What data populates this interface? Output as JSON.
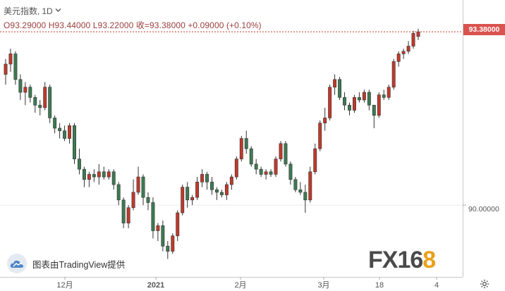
{
  "header": {
    "symbol": "美元指数,",
    "interval": "1D",
    "dropdown_icon": "chevron-down-icon",
    "ohlc": "O93.29000   H93.44000   L93.22000   收=93.38000   +0.09000  (+0.10%)"
  },
  "last_price_label": "93.38000",
  "price_axis_label": "90.00000",
  "watermark": {
    "text": "图表由TradingView提供",
    "icon": "tradingview-cloud-icon"
  },
  "brand": {
    "text_main": "FX16",
    "text_accent": "8"
  },
  "settings_icon": "gear-icon",
  "colors": {
    "up": "#c0392b",
    "down": "#3d7a52",
    "last_line": "#c0392b",
    "accent_orange": "#e9a11a"
  },
  "chart_data": {
    "type": "candlestick",
    "title": "美元指数",
    "interval": "1D",
    "x_ticks": [
      "12月",
      "2021",
      "2月",
      "3月",
      "18",
      "4"
    ],
    "y_ticks": [
      90.0
    ],
    "last_price": 93.38,
    "ylim": [
      88.6,
      94.0
    ],
    "candles": [
      [
        92.55,
        92.85,
        92.35,
        92.75
      ],
      [
        92.75,
        93.05,
        92.6,
        92.95
      ],
      [
        92.95,
        93.0,
        92.35,
        92.45
      ],
      [
        92.45,
        92.55,
        92.05,
        92.2
      ],
      [
        92.2,
        92.4,
        91.95,
        92.3
      ],
      [
        92.3,
        92.35,
        92.0,
        92.1
      ],
      [
        92.1,
        92.15,
        91.8,
        91.95
      ],
      [
        91.95,
        92.05,
        91.75,
        91.9
      ],
      [
        91.9,
        92.4,
        91.85,
        92.3
      ],
      [
        92.3,
        92.35,
        91.6,
        91.7
      ],
      [
        91.7,
        91.75,
        91.4,
        91.5
      ],
      [
        91.5,
        91.6,
        91.3,
        91.45
      ],
      [
        91.45,
        91.55,
        91.25,
        91.3
      ],
      [
        91.3,
        91.6,
        91.2,
        91.55
      ],
      [
        91.55,
        91.6,
        90.8,
        90.9
      ],
      [
        90.9,
        91.1,
        90.6,
        90.7
      ],
      [
        90.7,
        90.75,
        90.35,
        90.5
      ],
      [
        90.5,
        90.65,
        90.35,
        90.6
      ],
      [
        90.6,
        90.7,
        90.45,
        90.55
      ],
      [
        90.55,
        90.8,
        90.4,
        90.65
      ],
      [
        90.65,
        90.75,
        90.5,
        90.55
      ],
      [
        90.55,
        90.7,
        90.5,
        90.65
      ],
      [
        90.65,
        90.7,
        90.3,
        90.4
      ],
      [
        90.4,
        90.45,
        90.0,
        90.1
      ],
      [
        90.1,
        90.15,
        89.55,
        89.65
      ],
      [
        89.65,
        90.0,
        89.55,
        89.95
      ],
      [
        89.95,
        90.5,
        89.9,
        90.25
      ],
      [
        90.25,
        90.75,
        90.2,
        90.55
      ],
      [
        90.55,
        90.6,
        90.0,
        90.15
      ],
      [
        90.15,
        90.25,
        89.9,
        90.05
      ],
      [
        90.05,
        90.15,
        89.35,
        89.5
      ],
      [
        89.5,
        89.65,
        89.3,
        89.6
      ],
      [
        89.6,
        89.7,
        89.1,
        89.2
      ],
      [
        89.2,
        89.3,
        88.95,
        89.1
      ],
      [
        89.1,
        89.45,
        89.05,
        89.4
      ],
      [
        89.4,
        89.9,
        89.3,
        89.85
      ],
      [
        89.85,
        90.4,
        89.8,
        90.35
      ],
      [
        90.35,
        90.45,
        89.95,
        90.1
      ],
      [
        90.1,
        90.2,
        90.0,
        90.15
      ],
      [
        90.15,
        90.55,
        90.1,
        90.45
      ],
      [
        90.45,
        90.7,
        90.35,
        90.6
      ],
      [
        90.6,
        90.65,
        90.3,
        90.45
      ],
      [
        90.45,
        90.55,
        90.2,
        90.3
      ],
      [
        90.3,
        90.35,
        90.1,
        90.25
      ],
      [
        90.25,
        90.3,
        90.15,
        90.2
      ],
      [
        90.2,
        90.45,
        90.1,
        90.4
      ],
      [
        90.4,
        90.6,
        90.3,
        90.55
      ],
      [
        90.55,
        90.95,
        90.5,
        90.9
      ],
      [
        90.9,
        91.35,
        90.85,
        91.3
      ],
      [
        91.3,
        91.45,
        91.0,
        91.1
      ],
      [
        91.1,
        91.15,
        90.75,
        90.8
      ],
      [
        90.8,
        90.9,
        90.6,
        90.7
      ],
      [
        90.7,
        90.75,
        90.55,
        90.6
      ],
      [
        90.6,
        90.7,
        90.5,
        90.65
      ],
      [
        90.65,
        90.7,
        90.55,
        90.6
      ],
      [
        90.6,
        90.95,
        90.55,
        90.9
      ],
      [
        90.9,
        91.25,
        90.85,
        91.2
      ],
      [
        91.2,
        91.25,
        90.75,
        90.8
      ],
      [
        90.8,
        90.85,
        90.4,
        90.5
      ],
      [
        90.5,
        90.55,
        90.25,
        90.3
      ],
      [
        90.3,
        90.45,
        90.2,
        90.25
      ],
      [
        90.25,
        90.4,
        89.85,
        90.1
      ],
      [
        90.1,
        90.75,
        90.05,
        90.65
      ],
      [
        90.65,
        91.2,
        90.6,
        91.1
      ],
      [
        91.1,
        91.65,
        91.05,
        91.6
      ],
      [
        91.6,
        91.9,
        91.45,
        91.7
      ],
      [
        91.7,
        92.35,
        91.65,
        92.3
      ],
      [
        92.3,
        92.55,
        92.15,
        92.45
      ],
      [
        92.45,
        92.5,
        92.05,
        92.1
      ],
      [
        92.1,
        92.2,
        91.85,
        91.95
      ],
      [
        91.95,
        92.0,
        91.75,
        91.85
      ],
      [
        91.85,
        92.15,
        91.8,
        92.1
      ],
      [
        92.1,
        92.2,
        92.0,
        92.05
      ],
      [
        92.05,
        92.25,
        92.0,
        92.2
      ],
      [
        92.2,
        92.25,
        91.85,
        91.95
      ],
      [
        91.95,
        91.95,
        91.5,
        91.75
      ],
      [
        91.75,
        92.2,
        91.7,
        92.15
      ],
      [
        92.15,
        92.25,
        92.05,
        92.1
      ],
      [
        92.1,
        92.35,
        92.05,
        92.3
      ],
      [
        92.3,
        92.85,
        92.25,
        92.8
      ],
      [
        92.8,
        93.0,
        92.7,
        92.95
      ],
      [
        92.95,
        93.05,
        92.85,
        93.0
      ],
      [
        93.0,
        93.2,
        92.95,
        93.1
      ],
      [
        93.1,
        93.4,
        93.05,
        93.35
      ],
      [
        93.29,
        93.44,
        93.22,
        93.38
      ]
    ]
  }
}
